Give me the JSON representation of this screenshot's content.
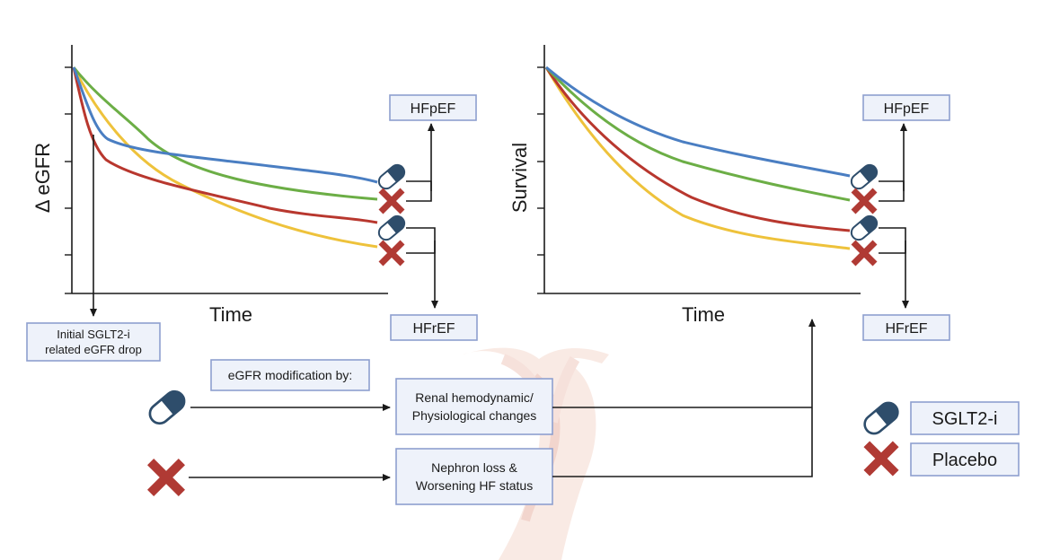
{
  "colors": {
    "blue": "#4a7ec2",
    "green": "#6cae46",
    "red": "#b8372e",
    "yellow": "#eec23b",
    "pill_dark": "#2e4d6b",
    "cross": "#b03a34",
    "box_fill": "#eef2fa",
    "box_stroke": "#8e9fcf",
    "watermark": "#efb8aa"
  },
  "icons": {
    "sglt2": "pill-icon",
    "placebo": "cross-icon",
    "background": "kidney-watermark-icon"
  },
  "left_chart": {
    "ylabel": "Δ eGFR",
    "xlabel": "Time",
    "box_top": "HFpEF",
    "box_bottom": "HFrEF",
    "callout": [
      "Initial SGLT2-i",
      "related eGFR drop"
    ]
  },
  "right_chart": {
    "ylabel": "Survival",
    "xlabel": "Time",
    "box_top": "HFpEF",
    "box_bottom": "HFrEF"
  },
  "flow": {
    "header": "eGFR modification by:",
    "sglt2_box": [
      "Renal hemodynamic/",
      "Physiological changes"
    ],
    "placebo_box": [
      "Nephron loss &",
      "Worsening HF status"
    ]
  },
  "legend": {
    "sglt2": "SGLT2-i",
    "placebo": "Placebo"
  }
}
